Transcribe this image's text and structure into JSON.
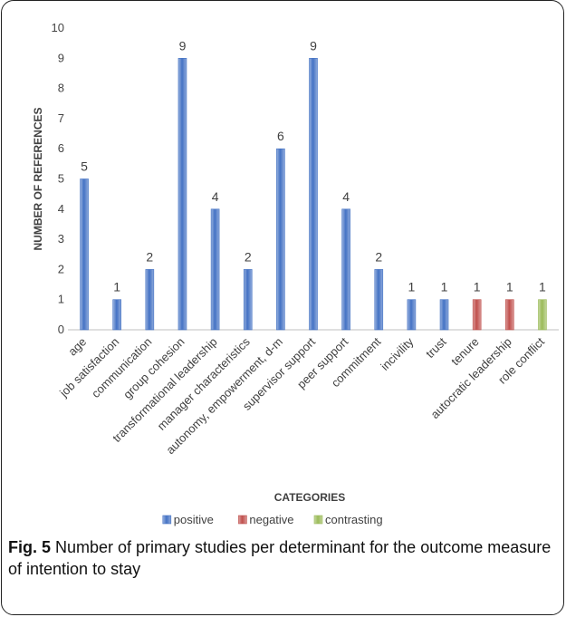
{
  "chart_data": {
    "type": "bar",
    "categories": [
      "age",
      "job satisfaction",
      "communication",
      "group cohesion",
      "transformational leadership",
      "manager characteristics",
      "autonomy, empowerment, d-m",
      "supervisor support",
      "peer support",
      "commitment",
      "incivility",
      "trust",
      "tenure",
      "autocratic leadership",
      "role conflict"
    ],
    "values": [
      5,
      1,
      2,
      9,
      4,
      2,
      6,
      9,
      4,
      2,
      1,
      1,
      1,
      1,
      1
    ],
    "groups": [
      "positive",
      "positive",
      "positive",
      "positive",
      "positive",
      "positive",
      "positive",
      "positive",
      "positive",
      "positive",
      "positive",
      "positive",
      "negative",
      "negative",
      "contrasting"
    ],
    "series": [
      {
        "name": "positive",
        "color": "#4472c4"
      },
      {
        "name": "negative",
        "color": "#c0504d"
      },
      {
        "name": "contrasting",
        "color": "#9bbb59"
      }
    ],
    "yticks": [
      "0",
      "1",
      "2",
      "3",
      "4",
      "5",
      "6",
      "7",
      "8",
      "9",
      "10"
    ],
    "xlabel": "CATEGORIES",
    "ylabel": "NUMBER OF REFERENCES",
    "ylim": [
      0,
      10
    ],
    "grid": false,
    "legend_position": "bottom"
  },
  "caption": {
    "label": "Fig. 5",
    "text": " Number of primary studies per determinant for the outcome measure of intention to stay"
  }
}
